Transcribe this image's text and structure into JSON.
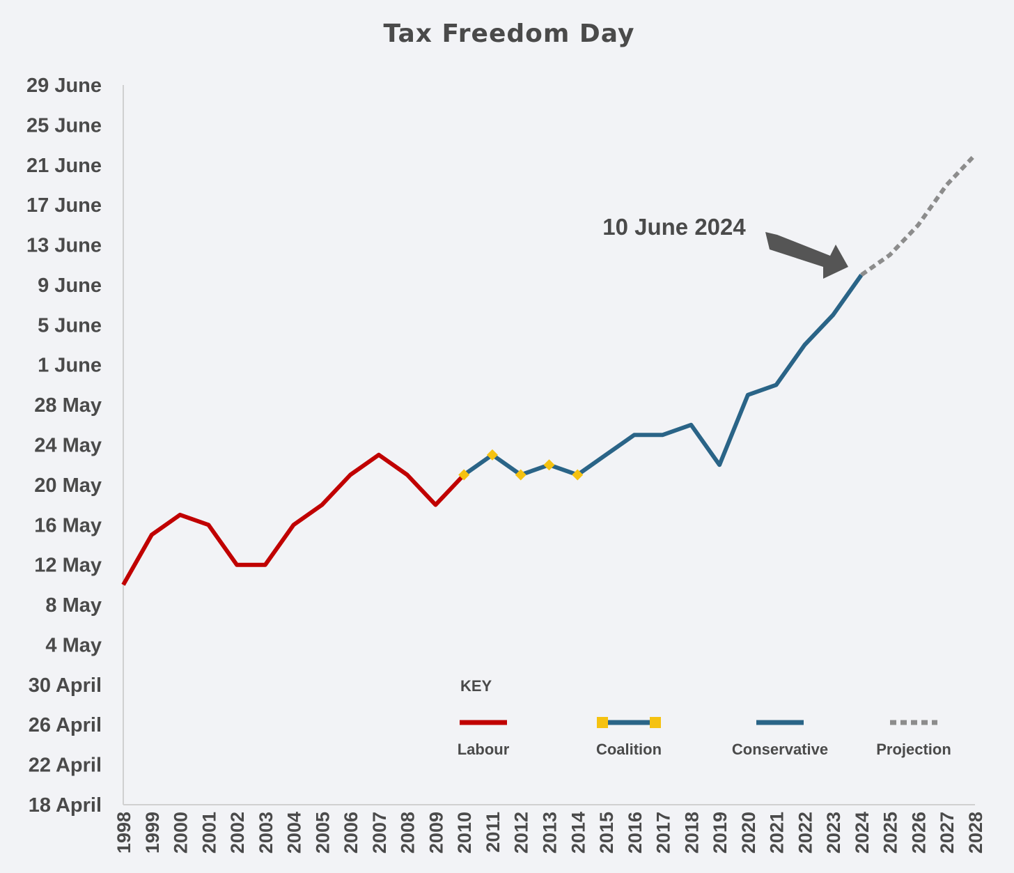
{
  "chart_data": {
    "type": "line",
    "title": "Tax Freedom Day",
    "y_tick_labels": [
      "18 April",
      "22 April",
      "26 April",
      "30 April",
      "4 May",
      "8 May",
      "12 May",
      "16 May",
      "20 May",
      "24 May",
      "28 May",
      "1 June",
      "5 June",
      "9 June",
      "13 June",
      "17 June",
      "21 June",
      "25 June",
      "29 June"
    ],
    "x_tick_labels": [
      "1998",
      "1999",
      "2000",
      "2001",
      "2002",
      "2003",
      "2004",
      "2005",
      "2006",
      "2007",
      "2008",
      "2009",
      "2010",
      "2011",
      "2012",
      "2013",
      "2014",
      "2015",
      "2016",
      "2017",
      "2018",
      "2019",
      "2020",
      "2021",
      "2022",
      "2023",
      "2024",
      "2025",
      "2026",
      "2027",
      "2028"
    ],
    "ylim": [
      "18 April",
      "29 June"
    ],
    "series": [
      {
        "name": "Labour",
        "color": "#c00000",
        "style": "solid",
        "points": [
          {
            "x": 1998,
            "y": "10 May"
          },
          {
            "x": 1999,
            "y": "15 May"
          },
          {
            "x": 2000,
            "y": "17 May"
          },
          {
            "x": 2001,
            "y": "16 May"
          },
          {
            "x": 2002,
            "y": "12 May"
          },
          {
            "x": 2003,
            "y": "12 May"
          },
          {
            "x": 2004,
            "y": "16 May"
          },
          {
            "x": 2005,
            "y": "18 May"
          },
          {
            "x": 2006,
            "y": "21 May"
          },
          {
            "x": 2007,
            "y": "23 May"
          },
          {
            "x": 2008,
            "y": "21 May"
          },
          {
            "x": 2009,
            "y": "18 May"
          },
          {
            "x": 2010,
            "y": "21 May"
          }
        ]
      },
      {
        "name": "Coalition",
        "color": "#2a6487",
        "marker_color": "#f5c211",
        "style": "solid-with-markers",
        "points": [
          {
            "x": 2010,
            "y": "21 May"
          },
          {
            "x": 2011,
            "y": "23 May"
          },
          {
            "x": 2012,
            "y": "21 May"
          },
          {
            "x": 2013,
            "y": "22 May"
          },
          {
            "x": 2014,
            "y": "21 May"
          }
        ]
      },
      {
        "name": "Conservative",
        "color": "#2a6487",
        "style": "solid",
        "points": [
          {
            "x": 2014,
            "y": "21 May"
          },
          {
            "x": 2015,
            "y": "23 May"
          },
          {
            "x": 2016,
            "y": "25 May"
          },
          {
            "x": 2017,
            "y": "25 May"
          },
          {
            "x": 2018,
            "y": "26 May"
          },
          {
            "x": 2019,
            "y": "22 May"
          },
          {
            "x": 2020,
            "y": "29 May"
          },
          {
            "x": 2021,
            "y": "30 May"
          },
          {
            "x": 2022,
            "y": "3 June"
          },
          {
            "x": 2023,
            "y": "6 June"
          },
          {
            "x": 2024,
            "y": "10 June"
          }
        ]
      },
      {
        "name": "Projection",
        "color": "#8c8c8c",
        "style": "dotted",
        "points": [
          {
            "x": 2024,
            "y": "10 June"
          },
          {
            "x": 2025,
            "y": "12 June"
          },
          {
            "x": 2026,
            "y": "15 June"
          },
          {
            "x": 2027,
            "y": "19 June"
          },
          {
            "x": 2028,
            "y": "22 June"
          }
        ]
      }
    ],
    "annotation": {
      "text": "10 June 2024",
      "x": 2024,
      "y": "10 June"
    },
    "legend": {
      "title": "KEY",
      "position": "bottom-center"
    },
    "grid": false
  }
}
